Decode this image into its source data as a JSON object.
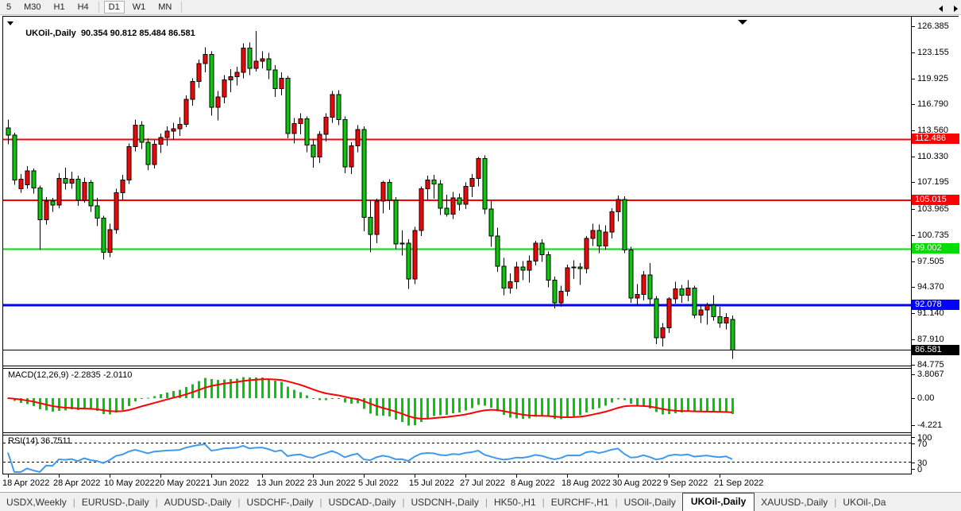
{
  "toolbar": {
    "items": [
      "5",
      "M30",
      "H1",
      "H4",
      "|",
      "D1",
      "W1",
      "MN",
      "|"
    ],
    "active": "D1"
  },
  "chart": {
    "title_symbol": "UKOil-,Daily",
    "title_ohlc": "90.354 90.812 85.484 86.581"
  },
  "indicator_labels": {
    "macd": "MACD(12,26,9) -2.2835 -2.0110",
    "rsi": "RSI(14) 36.7511"
  },
  "colors": {
    "bull": "#FF0000",
    "bear": "#00CC00",
    "wick": "#000000",
    "macd_hist": "#00CC00",
    "macd_signal": "#FF0000",
    "rsi_line": "#3E9AF0",
    "level_red": "#FF0000",
    "level_green": "#00DD00",
    "level_blue": "#0000FF",
    "bid_line": "#000000"
  },
  "chart_data": {
    "type": "candlestick",
    "symbol": "UKOil-",
    "timeframe": "Daily",
    "title": "UKOil-,Daily  90.354 90.812 85.484 86.581",
    "price_axis_ticks": [
      126.385,
      123.155,
      119.925,
      116.79,
      113.56,
      110.33,
      107.195,
      103.965,
      100.735,
      97.505,
      94.37,
      91.14,
      87.91,
      84.775
    ],
    "price_range": [
      84.775,
      126.385
    ],
    "grid": false,
    "levels": [
      {
        "value": 112.486,
        "label": "112.486",
        "color": "#FF0000",
        "width": 2
      },
      {
        "value": 105.015,
        "label": "105.015",
        "color": "#FF0000",
        "width": 2
      },
      {
        "value": 99.002,
        "label": "99.002",
        "color": "#00DD00",
        "width": 2
      },
      {
        "value": 92.078,
        "label": "92.078",
        "color": "#0000FF",
        "width": 3
      }
    ],
    "bid": {
      "value": 86.581,
      "label": "86.581"
    },
    "x_labels": [
      "18 Apr 2022",
      "28 Apr 2022",
      "10 May 2022",
      "20 May 2022",
      "1 Jun 2022",
      "13 Jun 2022",
      "23 Jun 2022",
      "5 Jul 2022",
      "15 Jul 2022",
      "27 Jul 2022",
      "8 Aug 2022",
      "18 Aug 2022",
      "30 Aug 2022",
      "9 Sep 2022",
      "21 Sep 2022"
    ],
    "x_label_every_n_bars": 8,
    "ohlc": [
      [
        113.9,
        114.9,
        111.9,
        113.0
      ],
      [
        113.0,
        113.3,
        106.9,
        107.5
      ],
      [
        106.4,
        108.2,
        105.9,
        107.6
      ],
      [
        106.9,
        109.2,
        106.4,
        108.6
      ],
      [
        108.6,
        108.9,
        105.8,
        106.5
      ],
      [
        106.5,
        106.8,
        98.9,
        102.6
      ],
      [
        102.6,
        105.4,
        102.0,
        104.9
      ],
      [
        104.9,
        105.3,
        103.6,
        104.4
      ],
      [
        104.4,
        108.3,
        104.0,
        107.7
      ],
      [
        107.7,
        109.0,
        106.3,
        107.1
      ],
      [
        107.1,
        108.5,
        106.4,
        107.6
      ],
      [
        107.6,
        108.0,
        104.3,
        105.0
      ],
      [
        105.0,
        107.8,
        104.7,
        107.2
      ],
      [
        107.2,
        107.5,
        103.6,
        104.3
      ],
      [
        104.3,
        105.3,
        101.8,
        102.8
      ],
      [
        102.8,
        103.1,
        97.7,
        98.6
      ],
      [
        98.6,
        102.1,
        98.0,
        101.4
      ],
      [
        101.4,
        106.4,
        100.9,
        105.9
      ],
      [
        105.9,
        108.1,
        105.0,
        107.5
      ],
      [
        107.5,
        112.0,
        107.0,
        111.6
      ],
      [
        111.6,
        114.9,
        111.0,
        114.2
      ],
      [
        114.2,
        114.7,
        111.3,
        112.1
      ],
      [
        112.1,
        112.6,
        108.7,
        109.4
      ],
      [
        109.4,
        112.4,
        108.9,
        111.9
      ],
      [
        111.9,
        113.2,
        110.8,
        112.7
      ],
      [
        112.7,
        114.1,
        111.7,
        113.5
      ],
      [
        113.5,
        114.5,
        112.4,
        113.8
      ],
      [
        113.8,
        115.2,
        112.9,
        114.3
      ],
      [
        114.3,
        117.9,
        114.0,
        117.4
      ],
      [
        117.4,
        120.0,
        116.6,
        119.6
      ],
      [
        119.6,
        122.3,
        118.8,
        121.8
      ],
      [
        121.8,
        123.8,
        120.7,
        122.9
      ],
      [
        122.9,
        123.3,
        115.4,
        116.4
      ],
      [
        116.4,
        118.4,
        114.8,
        117.7
      ],
      [
        117.7,
        120.4,
        116.9,
        119.8
      ],
      [
        119.8,
        121.1,
        118.3,
        120.2
      ],
      [
        120.2,
        121.4,
        119.1,
        120.7
      ],
      [
        120.7,
        124.3,
        120.0,
        123.7
      ],
      [
        123.7,
        124.4,
        120.4,
        121.2
      ],
      [
        121.2,
        125.8,
        120.8,
        122.1
      ],
      [
        122.1,
        123.3,
        121.2,
        122.4
      ],
      [
        122.4,
        123.1,
        119.9,
        121.0
      ],
      [
        121.0,
        121.6,
        117.7,
        118.7
      ],
      [
        118.7,
        120.7,
        117.9,
        120.0
      ],
      [
        120.0,
        120.3,
        112.6,
        113.2
      ],
      [
        113.2,
        115.1,
        112.0,
        114.4
      ],
      [
        114.4,
        115.7,
        113.1,
        115.0
      ],
      [
        115.0,
        115.3,
        110.9,
        111.8
      ],
      [
        111.8,
        112.5,
        109.0,
        110.3
      ],
      [
        110.3,
        113.5,
        109.6,
        113.1
      ],
      [
        113.1,
        115.7,
        112.2,
        115.2
      ],
      [
        115.2,
        118.4,
        114.5,
        118.0
      ],
      [
        118.0,
        118.5,
        114.2,
        114.9
      ],
      [
        114.9,
        115.3,
        108.3,
        109.1
      ],
      [
        109.1,
        112.1,
        108.2,
        111.7
      ],
      [
        111.7,
        114.2,
        110.9,
        113.7
      ],
      [
        113.7,
        114.1,
        101.2,
        102.9
      ],
      [
        102.9,
        105.0,
        98.6,
        100.8
      ],
      [
        100.8,
        105.2,
        99.7,
        104.9
      ],
      [
        104.9,
        107.4,
        103.4,
        107.2
      ],
      [
        107.2,
        107.6,
        103.8,
        105.0
      ],
      [
        105.0,
        105.4,
        99.0,
        99.6
      ],
      [
        99.6,
        101.3,
        98.2,
        99.7
      ],
      [
        99.7,
        100.2,
        94.1,
        95.3
      ],
      [
        95.3,
        101.7,
        94.7,
        101.3
      ],
      [
        101.3,
        106.7,
        100.6,
        106.4
      ],
      [
        106.4,
        108.0,
        105.0,
        107.5
      ],
      [
        107.5,
        108.1,
        105.2,
        107.0
      ],
      [
        107.0,
        107.5,
        103.2,
        104.0
      ],
      [
        104.0,
        105.7,
        103.0,
        103.3
      ],
      [
        103.3,
        106.0,
        102.7,
        105.3
      ],
      [
        105.3,
        105.8,
        103.7,
        104.5
      ],
      [
        104.5,
        107.2,
        103.9,
        106.7
      ],
      [
        106.7,
        108.2,
        105.4,
        107.7
      ],
      [
        107.7,
        110.3,
        106.7,
        110.1
      ],
      [
        110.1,
        110.5,
        103.3,
        103.9
      ],
      [
        103.9,
        104.9,
        99.3,
        100.6
      ],
      [
        100.6,
        101.6,
        96.2,
        96.9
      ],
      [
        96.9,
        97.9,
        93.3,
        94.2
      ],
      [
        94.2,
        96.0,
        93.5,
        95.0
      ],
      [
        95.0,
        97.4,
        94.1,
        96.8
      ],
      [
        96.8,
        97.5,
        95.2,
        96.4
      ],
      [
        96.4,
        98.2,
        94.9,
        97.5
      ],
      [
        97.5,
        100.0,
        97.0,
        99.7
      ],
      [
        99.7,
        100.2,
        97.4,
        98.3
      ],
      [
        98.3,
        98.7,
        94.3,
        95.2
      ],
      [
        95.2,
        95.6,
        91.7,
        92.4
      ],
      [
        92.4,
        94.5,
        91.9,
        93.8
      ],
      [
        93.8,
        97.1,
        93.2,
        96.7
      ],
      [
        96.7,
        97.6,
        95.3,
        96.8
      ],
      [
        96.8,
        97.3,
        94.6,
        96.6
      ],
      [
        96.6,
        100.6,
        96.0,
        100.3
      ],
      [
        100.3,
        102.1,
        99.4,
        101.3
      ],
      [
        101.3,
        102.0,
        98.5,
        99.4
      ],
      [
        99.4,
        101.9,
        98.9,
        101.1
      ],
      [
        101.1,
        104.0,
        100.3,
        103.6
      ],
      [
        103.6,
        105.6,
        102.4,
        105.1
      ],
      [
        105.1,
        105.5,
        98.5,
        98.9
      ],
      [
        98.9,
        99.3,
        92.4,
        93.0
      ],
      [
        93.0,
        94.7,
        92.1,
        93.4
      ],
      [
        93.4,
        96.3,
        92.7,
        95.8
      ],
      [
        95.8,
        97.3,
        92.2,
        92.9
      ],
      [
        92.9,
        93.2,
        87.3,
        88.1
      ],
      [
        88.1,
        89.9,
        87.0,
        89.3
      ],
      [
        89.3,
        93.1,
        88.7,
        92.9
      ],
      [
        92.9,
        95.0,
        92.3,
        94.1
      ],
      [
        94.1,
        94.6,
        92.4,
        93.3
      ],
      [
        93.3,
        95.2,
        92.6,
        94.2
      ],
      [
        94.2,
        94.5,
        90.5,
        90.9
      ],
      [
        90.9,
        92.1,
        89.9,
        91.5
      ],
      [
        91.5,
        92.4,
        89.7,
        92.1
      ],
      [
        92.1,
        93.3,
        90.2,
        90.7
      ],
      [
        90.7,
        91.9,
        89.3,
        89.9
      ],
      [
        89.9,
        91.1,
        89.1,
        90.6
      ],
      [
        90.354,
        90.812,
        85.484,
        86.581
      ]
    ],
    "indicators": [
      {
        "name": "MACD",
        "params": [
          12,
          26,
          9
        ],
        "current_values": "-2.2835 -2.0110",
        "axis_ticks": [
          {
            "v": 3.8067,
            "label": "3.8067"
          },
          {
            "v": 0,
            "label": "0.00"
          },
          {
            "v": -4.221,
            "label": "-4.221"
          }
        ]
      },
      {
        "name": "RSI",
        "params": [
          14
        ],
        "current_value": "36.7511",
        "axis_ticks": [
          {
            "v": 100,
            "label": "100"
          },
          {
            "v": 70,
            "label": "70"
          },
          {
            "v": 30,
            "label": "30"
          },
          {
            "v": 0,
            "label": "0"
          }
        ],
        "bands": [
          70,
          30
        ]
      }
    ]
  },
  "tabs": {
    "items": [
      "USDX,Weekly",
      "EURUSD-,Daily",
      "AUDUSD-,Daily",
      "USDCHF-,Daily",
      "USDCAD-,Daily",
      "USDCNH-,Daily",
      "HK50-,H1",
      "EURCHF-,H1",
      "USOil-,Daily",
      "UKOil-,Daily",
      "XAUUSD-,Daily",
      "UKOil-,Da"
    ],
    "active_index": 9
  }
}
